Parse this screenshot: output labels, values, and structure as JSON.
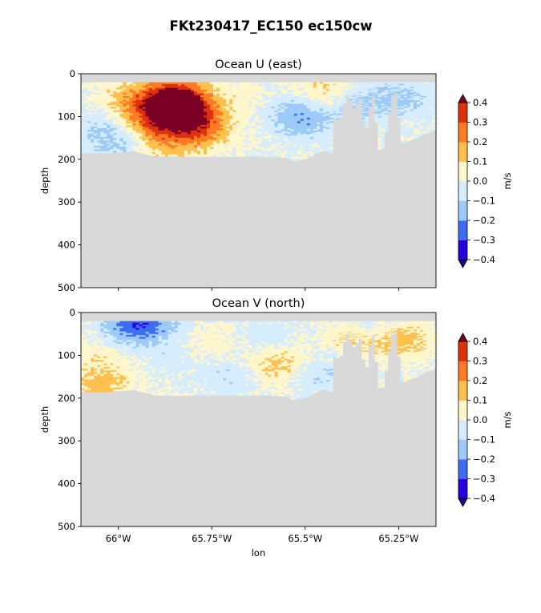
{
  "figure": {
    "title": "FKt230417_EC150 ec150cw"
  },
  "colorbar": {
    "label": "m/s",
    "ticks": [
      "0.4",
      "0.3",
      "0.2",
      "0.1",
      "0.0",
      "−0.1",
      "−0.2",
      "−0.3",
      "−0.4"
    ],
    "colors": [
      "#2800e0",
      "#3f6cf5",
      "#9ccaf9",
      "#d6ecff",
      "#fff6cc",
      "#ffc04d",
      "#ff7a24",
      "#e0300c"
    ],
    "over_color": "#7a0026",
    "under_color": "#220090"
  },
  "mask_color": "#d9d9d9",
  "chart_data": [
    {
      "type": "heatmap",
      "title": "Ocean U (east)",
      "ylabel": "depth",
      "xlabel": "",
      "ylim": [
        500,
        0
      ],
      "xlim": [
        -66.1,
        -65.15
      ],
      "y_ticks": [
        "0",
        "100",
        "200",
        "300",
        "400",
        "500"
      ],
      "x_ticks": [
        "66°W",
        "65.75°W",
        "65.5°W",
        "65.25°W"
      ],
      "x_tick_values": [
        -66.0,
        -65.75,
        -65.5,
        -65.25
      ],
      "show_x_tick_labels": false,
      "data_top_depth": 20,
      "bottom_depth_profile": {
        "lon": [
          -66.1,
          -66.03,
          -65.98,
          -65.96,
          -65.9,
          -65.8,
          -65.7,
          -65.6,
          -65.55,
          -65.53,
          -65.5,
          -65.48,
          -65.45,
          -65.43,
          -65.42,
          -65.41,
          -65.39,
          -65.37,
          -65.35,
          -65.34,
          -65.32,
          -65.3,
          -65.29,
          -65.27,
          -65.26,
          -65.24,
          -65.22,
          -65.2,
          -65.18,
          -65.15
        ],
        "depth": [
          185,
          185,
          182,
          180,
          193,
          193,
          193,
          193,
          196,
          205,
          198,
          190,
          178,
          185,
          80,
          120,
          45,
          80,
          55,
          150,
          40,
          185,
          170,
          60,
          30,
          165,
          155,
          150,
          140,
          130
        ]
      },
      "features": [
        {
          "lon": -65.85,
          "depth": 60,
          "value": 0.45
        },
        {
          "lon": -65.82,
          "depth": 90,
          "value": 0.33
        },
        {
          "lon": -65.9,
          "depth": 110,
          "value": 0.25
        },
        {
          "lon": -65.78,
          "depth": 130,
          "value": 0.22
        },
        {
          "lon": -65.88,
          "depth": 170,
          "value": 0.12
        },
        {
          "lon": -65.97,
          "depth": 60,
          "value": 0.15
        },
        {
          "lon": -66.05,
          "depth": 120,
          "value": -0.08
        },
        {
          "lon": -66.0,
          "depth": 170,
          "value": -0.12
        },
        {
          "lon": -65.5,
          "depth": 110,
          "value": -0.15
        },
        {
          "lon": -65.55,
          "depth": 80,
          "value": -0.08
        },
        {
          "lon": -65.45,
          "depth": 40,
          "value": 0.12
        },
        {
          "lon": -65.65,
          "depth": 60,
          "value": 0.05
        },
        {
          "lon": -65.36,
          "depth": 70,
          "value": -0.12
        },
        {
          "lon": -65.24,
          "depth": 60,
          "value": -0.12
        }
      ]
    },
    {
      "type": "heatmap",
      "title": "Ocean V (north)",
      "ylabel": "depth",
      "xlabel": "lon",
      "ylim": [
        500,
        0
      ],
      "xlim": [
        -66.1,
        -65.15
      ],
      "y_ticks": [
        "0",
        "100",
        "200",
        "300",
        "400",
        "500"
      ],
      "x_ticks": [
        "66°W",
        "65.75°W",
        "65.5°W",
        "65.25°W"
      ],
      "x_tick_values": [
        -66.0,
        -65.75,
        -65.5,
        -65.25
      ],
      "show_x_tick_labels": true,
      "data_top_depth": 20,
      "bottom_depth_profile": {
        "lon": [
          -66.1,
          -66.03,
          -65.98,
          -65.96,
          -65.9,
          -65.8,
          -65.7,
          -65.6,
          -65.55,
          -65.53,
          -65.5,
          -65.48,
          -65.45,
          -65.43,
          -65.42,
          -65.41,
          -65.39,
          -65.37,
          -65.35,
          -65.34,
          -65.32,
          -65.3,
          -65.29,
          -65.27,
          -65.26,
          -65.24,
          -65.22,
          -65.2,
          -65.18,
          -65.15
        ],
        "depth": [
          185,
          185,
          182,
          180,
          193,
          193,
          193,
          193,
          196,
          205,
          198,
          190,
          178,
          185,
          80,
          120,
          45,
          80,
          55,
          150,
          40,
          185,
          170,
          60,
          30,
          165,
          155,
          150,
          140,
          130
        ]
      },
      "features": [
        {
          "lon": -65.97,
          "depth": 30,
          "value": -0.22
        },
        {
          "lon": -65.9,
          "depth": 30,
          "value": -0.12
        },
        {
          "lon": -66.05,
          "depth": 90,
          "value": 0.05
        },
        {
          "lon": -65.85,
          "depth": 110,
          "value": -0.05
        },
        {
          "lon": -65.75,
          "depth": 70,
          "value": 0.06
        },
        {
          "lon": -65.7,
          "depth": 150,
          "value": -0.08
        },
        {
          "lon": -65.57,
          "depth": 120,
          "value": 0.15
        },
        {
          "lon": -65.6,
          "depth": 60,
          "value": -0.07
        },
        {
          "lon": -65.48,
          "depth": 150,
          "value": -0.08
        },
        {
          "lon": -65.38,
          "depth": 70,
          "value": 0.12
        },
        {
          "lon": -65.3,
          "depth": 30,
          "value": -0.1
        },
        {
          "lon": -65.25,
          "depth": 60,
          "value": 0.18
        },
        {
          "lon": -66.05,
          "depth": 165,
          "value": 0.15
        },
        {
          "lon": -65.4,
          "depth": 110,
          "value": -0.06
        }
      ]
    }
  ]
}
